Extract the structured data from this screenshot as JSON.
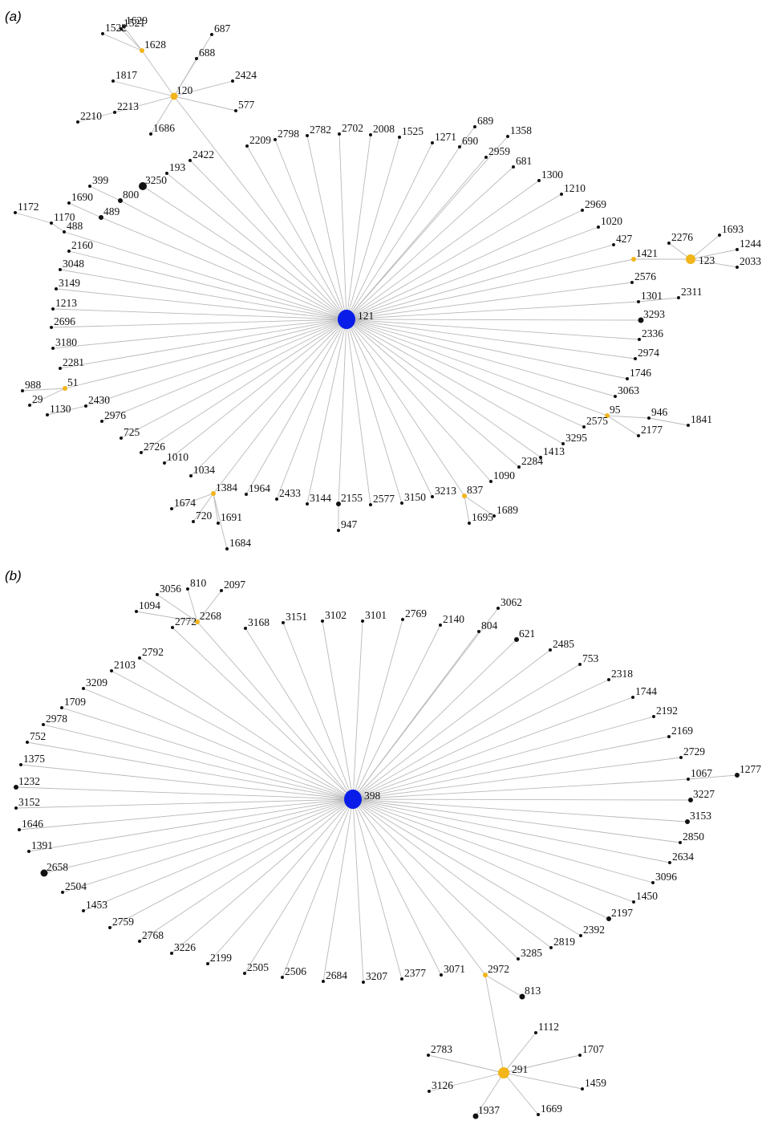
{
  "colors": {
    "hub": "#0a1de8",
    "bridge": "#f2b51a",
    "leaf": "#111111",
    "edge": "#b9b9b9"
  },
  "panels": [
    {
      "label": "(a)",
      "hub": "121",
      "nodes": [
        "121",
        "120",
        "1628",
        "1629",
        "1521",
        "1522",
        "687",
        "688",
        "1817",
        "2424",
        "577",
        "2213",
        "2210",
        "1686",
        "2209",
        "2798",
        "2782",
        "2702",
        "2008",
        "1525",
        "1271",
        "690",
        "689",
        "1358",
        "2959",
        "681",
        "1300",
        "1210",
        "2969",
        "1020",
        "427",
        "1421",
        "123",
        "2276",
        "1693",
        "1244",
        "2033",
        "2576",
        "1301",
        "2311",
        "3293",
        "2336",
        "2974",
        "1746",
        "3063",
        "95",
        "946",
        "1841",
        "2177",
        "2575",
        "3295",
        "1413",
        "2284",
        "1090",
        "837",
        "1689",
        "1695",
        "3213",
        "3150",
        "2577",
        "2155",
        "947",
        "3144",
        "2433",
        "1964",
        "1384",
        "1674",
        "720",
        "1691",
        "1684",
        "1034",
        "1010",
        "2726",
        "725",
        "2976",
        "2430",
        "1130",
        "51",
        "988",
        "29",
        "2281",
        "3180",
        "2696",
        "1213",
        "3149",
        "3048",
        "2160",
        "488",
        "1170",
        "1172",
        "489",
        "1690",
        "800",
        "399",
        "3250",
        "193",
        "2422"
      ],
      "edges": [
        [
          "121",
          "120"
        ],
        [
          "120",
          "1628"
        ],
        [
          "1628",
          "1629"
        ],
        [
          "1628",
          "1521"
        ],
        [
          "1628",
          "1522"
        ],
        [
          "120",
          "687"
        ],
        [
          "120",
          "688"
        ],
        [
          "120",
          "1817"
        ],
        [
          "120",
          "2424"
        ],
        [
          "120",
          "577"
        ],
        [
          "120",
          "2213"
        ],
        [
          "2213",
          "2210"
        ],
        [
          "120",
          "1686"
        ],
        [
          "121",
          "2209"
        ],
        [
          "121",
          "2798"
        ],
        [
          "121",
          "2782"
        ],
        [
          "121",
          "2702"
        ],
        [
          "121",
          "2008"
        ],
        [
          "121",
          "1525"
        ],
        [
          "121",
          "1271"
        ],
        [
          "121",
          "690"
        ],
        [
          "690",
          "689"
        ],
        [
          "121",
          "1358"
        ],
        [
          "121",
          "2959"
        ],
        [
          "121",
          "681"
        ],
        [
          "121",
          "1300"
        ],
        [
          "121",
          "1210"
        ],
        [
          "121",
          "2969"
        ],
        [
          "121",
          "1020"
        ],
        [
          "121",
          "427"
        ],
        [
          "121",
          "1421"
        ],
        [
          "1421",
          "123"
        ],
        [
          "123",
          "2276"
        ],
        [
          "123",
          "1693"
        ],
        [
          "123",
          "1244"
        ],
        [
          "123",
          "2033"
        ],
        [
          "121",
          "2576"
        ],
        [
          "121",
          "1301"
        ],
        [
          "1301",
          "2311"
        ],
        [
          "121",
          "3293"
        ],
        [
          "121",
          "2336"
        ],
        [
          "121",
          "2974"
        ],
        [
          "121",
          "1746"
        ],
        [
          "121",
          "3063"
        ],
        [
          "121",
          "95"
        ],
        [
          "95",
          "946"
        ],
        [
          "946",
          "1841"
        ],
        [
          "95",
          "2177"
        ],
        [
          "121",
          "2575"
        ],
        [
          "121",
          "3295"
        ],
        [
          "121",
          "1413"
        ],
        [
          "121",
          "2284"
        ],
        [
          "121",
          "1090"
        ],
        [
          "121",
          "837"
        ],
        [
          "837",
          "1689"
        ],
        [
          "837",
          "1695"
        ],
        [
          "121",
          "3213"
        ],
        [
          "121",
          "3150"
        ],
        [
          "121",
          "2577"
        ],
        [
          "121",
          "2155"
        ],
        [
          "2155",
          "947"
        ],
        [
          "121",
          "3144"
        ],
        [
          "121",
          "2433"
        ],
        [
          "121",
          "1964"
        ],
        [
          "121",
          "1384"
        ],
        [
          "1384",
          "1674"
        ],
        [
          "1384",
          "720"
        ],
        [
          "1384",
          "1691"
        ],
        [
          "1384",
          "1684"
        ],
        [
          "121",
          "1034"
        ],
        [
          "121",
          "1010"
        ],
        [
          "121",
          "2726"
        ],
        [
          "121",
          "725"
        ],
        [
          "121",
          "2976"
        ],
        [
          "121",
          "2430"
        ],
        [
          "2430",
          "1130"
        ],
        [
          "121",
          "51"
        ],
        [
          "51",
          "988"
        ],
        [
          "51",
          "29"
        ],
        [
          "121",
          "2281"
        ],
        [
          "121",
          "3180"
        ],
        [
          "121",
          "2696"
        ],
        [
          "121",
          "1213"
        ],
        [
          "121",
          "3149"
        ],
        [
          "121",
          "3048"
        ],
        [
          "121",
          "2160"
        ],
        [
          "121",
          "488"
        ],
        [
          "488",
          "1170"
        ],
        [
          "1170",
          "1172"
        ],
        [
          "121",
          "489"
        ],
        [
          "489",
          "1690"
        ],
        [
          "121",
          "800"
        ],
        [
          "800",
          "399"
        ],
        [
          "121",
          "3250"
        ],
        [
          "121",
          "193"
        ],
        [
          "121",
          "2422"
        ]
      ]
    },
    {
      "label": "(b)",
      "hub": "398",
      "nodes": [
        "398",
        "2268",
        "1094",
        "3056",
        "810",
        "2097",
        "2772",
        "2792",
        "2103",
        "3209",
        "1709",
        "2978",
        "752",
        "1375",
        "1232",
        "3152",
        "1646",
        "1391",
        "2658",
        "2504",
        "1453",
        "2759",
        "2768",
        "3226",
        "2199",
        "2505",
        "2506",
        "2684",
        "3207",
        "2377",
        "3071",
        "2972",
        "813",
        "291",
        "2783",
        "3126",
        "1937",
        "1669",
        "1459",
        "1707",
        "1112",
        "3285",
        "2819",
        "2392",
        "2197",
        "1450",
        "3096",
        "2634",
        "2850",
        "3153",
        "3227",
        "1067",
        "1277",
        "2729",
        "2169",
        "2192",
        "1744",
        "2318",
        "753",
        "2485",
        "621",
        "804",
        "3062",
        "2140",
        "2769",
        "3101",
        "3102",
        "3151",
        "3168"
      ],
      "edges": [
        [
          "398",
          "2268"
        ],
        [
          "2268",
          "1094"
        ],
        [
          "2268",
          "3056"
        ],
        [
          "2268",
          "810"
        ],
        [
          "2268",
          "2097"
        ],
        [
          "398",
          "2772"
        ],
        [
          "398",
          "2792"
        ],
        [
          "398",
          "2103"
        ],
        [
          "398",
          "3209"
        ],
        [
          "398",
          "1709"
        ],
        [
          "398",
          "2978"
        ],
        [
          "398",
          "752"
        ],
        [
          "398",
          "1375"
        ],
        [
          "398",
          "1232"
        ],
        [
          "398",
          "3152"
        ],
        [
          "398",
          "1646"
        ],
        [
          "398",
          "1391"
        ],
        [
          "398",
          "2658"
        ],
        [
          "398",
          "2504"
        ],
        [
          "398",
          "1453"
        ],
        [
          "398",
          "2759"
        ],
        [
          "398",
          "2768"
        ],
        [
          "398",
          "3226"
        ],
        [
          "398",
          "2199"
        ],
        [
          "398",
          "2505"
        ],
        [
          "398",
          "2506"
        ],
        [
          "398",
          "2684"
        ],
        [
          "398",
          "3207"
        ],
        [
          "398",
          "2377"
        ],
        [
          "398",
          "3071"
        ],
        [
          "398",
          "2972"
        ],
        [
          "2972",
          "813"
        ],
        [
          "2972",
          "291"
        ],
        [
          "291",
          "2783"
        ],
        [
          "291",
          "3126"
        ],
        [
          "291",
          "1937"
        ],
        [
          "291",
          "1669"
        ],
        [
          "291",
          "1459"
        ],
        [
          "291",
          "1707"
        ],
        [
          "291",
          "1112"
        ],
        [
          "398",
          "3285"
        ],
        [
          "398",
          "2819"
        ],
        [
          "398",
          "2392"
        ],
        [
          "398",
          "2197"
        ],
        [
          "398",
          "1450"
        ],
        [
          "398",
          "3096"
        ],
        [
          "398",
          "2634"
        ],
        [
          "398",
          "2850"
        ],
        [
          "398",
          "3153"
        ],
        [
          "398",
          "3227"
        ],
        [
          "398",
          "1067"
        ],
        [
          "1067",
          "1277"
        ],
        [
          "398",
          "2729"
        ],
        [
          "398",
          "2169"
        ],
        [
          "398",
          "2192"
        ],
        [
          "398",
          "1744"
        ],
        [
          "398",
          "2318"
        ],
        [
          "398",
          "753"
        ],
        [
          "398",
          "2485"
        ],
        [
          "398",
          "621"
        ],
        [
          "398",
          "804"
        ],
        [
          "398",
          "3062"
        ],
        [
          "398",
          "2140"
        ],
        [
          "398",
          "2769"
        ],
        [
          "398",
          "3101"
        ],
        [
          "398",
          "3102"
        ],
        [
          "398",
          "3151"
        ],
        [
          "398",
          "3168"
        ]
      ]
    }
  ]
}
